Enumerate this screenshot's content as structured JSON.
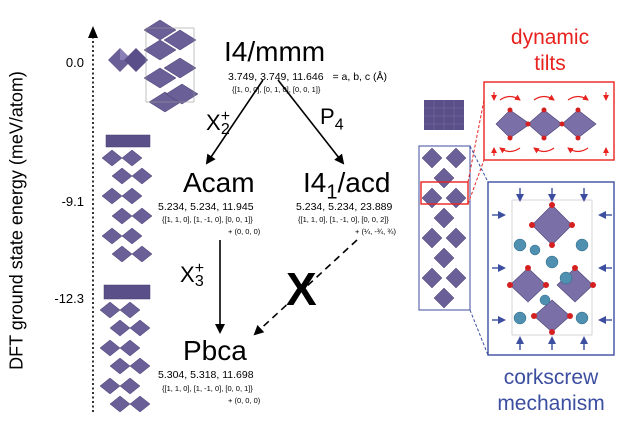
{
  "axis": {
    "label": "DFT ground state energy (meV/atom)",
    "ticks": [
      "0.0",
      "-9.1",
      "-12.3"
    ]
  },
  "phases": {
    "i4mmm": {
      "name": "I4/mmm",
      "lattice": "3.749, 3.749, 11.646",
      "lattice_suffix": "= a, b, c (Å)",
      "vectors": "{[1, 0, 0], [0, 1, 0], [0, 0, 1]}"
    },
    "acam": {
      "name": "Acam",
      "lattice": "5.234, 5.234, 11.945",
      "vectors": "{[1, 1, 0], [1, -1, 0], [0, 0, 1]}",
      "offset": "+ (0, 0, 0)"
    },
    "i41acd": {
      "name_pre": "I4",
      "name_sub": "1",
      "name_post": "/acd",
      "lattice": "5.234, 5.234, 23.889",
      "vectors": "{[1, 1, 0], [1, -1, 0], [0, 0, 2]}",
      "offset": "+ (¼, -¾, ¾)"
    },
    "pbca": {
      "name": "Pbca",
      "lattice": "5.304, 5.318, 11.698",
      "vectors": "{[1, 1, 0], [1, -1, 0], [0, 0, 1]}",
      "offset": "+ (0, 0, 0)"
    }
  },
  "transitions": {
    "x2": {
      "base": "X",
      "sup": "+",
      "sub": "2"
    },
    "p4": {
      "base": "P",
      "sub": "4"
    },
    "x3": {
      "base": "X",
      "sup": "+",
      "sub": "3"
    },
    "forbidden": "X"
  },
  "insets": {
    "top": {
      "line1": "dynamic",
      "line2": "tilts",
      "color": "#e8231f"
    },
    "bottom": {
      "line1": "corkscrew",
      "line2": "mechanism",
      "color": "#3c4ea0"
    }
  },
  "colors": {
    "octahedron": "#6a5f96",
    "octahedron_dark": "#4b4277",
    "oxygen": "#d42020",
    "cation": "#4f8fb0"
  }
}
